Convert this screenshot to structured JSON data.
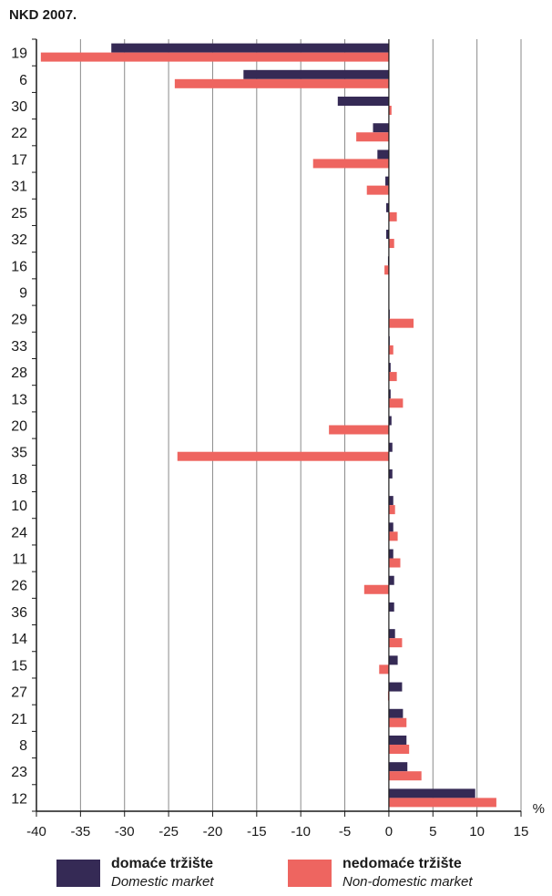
{
  "chart_data": {
    "type": "bar",
    "orientation": "horizontal",
    "title": "NKD 2007.",
    "xlabel": "%",
    "ylabel": "",
    "xlim": [
      -40,
      15
    ],
    "xticks": [
      -40,
      -35,
      -30,
      -25,
      -20,
      -15,
      -10,
      -5,
      0,
      5,
      10,
      15
    ],
    "grid": true,
    "legend_position": "bottom",
    "categories": [
      "19",
      "6",
      "30",
      "22",
      "17",
      "31",
      "25",
      "32",
      "16",
      "9",
      "29",
      "33",
      "28",
      "13",
      "20",
      "35",
      "18",
      "10",
      "24",
      "11",
      "26",
      "36",
      "14",
      "15",
      "27",
      "21",
      "8",
      "23",
      "12"
    ],
    "series": [
      {
        "name": "domaće tržište",
        "name_en": "Domestic market",
        "color": "#352a55",
        "values": [
          -31.5,
          -16.5,
          -5.8,
          -1.8,
          -1.3,
          -0.4,
          -0.3,
          -0.3,
          -0.1,
          0.0,
          0.1,
          0.1,
          0.2,
          0.2,
          0.3,
          0.4,
          0.4,
          0.5,
          0.5,
          0.5,
          0.6,
          0.6,
          0.7,
          1.0,
          1.5,
          1.6,
          2.0,
          2.1,
          9.8
        ]
      },
      {
        "name": "nedomaće tržište",
        "name_en": "Non-domestic market",
        "color": "#ee6560",
        "values": [
          -39.5,
          -24.3,
          0.3,
          -3.7,
          -8.6,
          -2.5,
          0.9,
          0.6,
          -0.5,
          0.0,
          2.8,
          0.5,
          0.9,
          1.6,
          -6.8,
          -24.0,
          0.0,
          0.7,
          1.0,
          1.3,
          -2.8,
          0.0,
          1.5,
          -1.1,
          -0.1,
          2.0,
          2.3,
          3.7,
          12.2
        ]
      }
    ]
  }
}
